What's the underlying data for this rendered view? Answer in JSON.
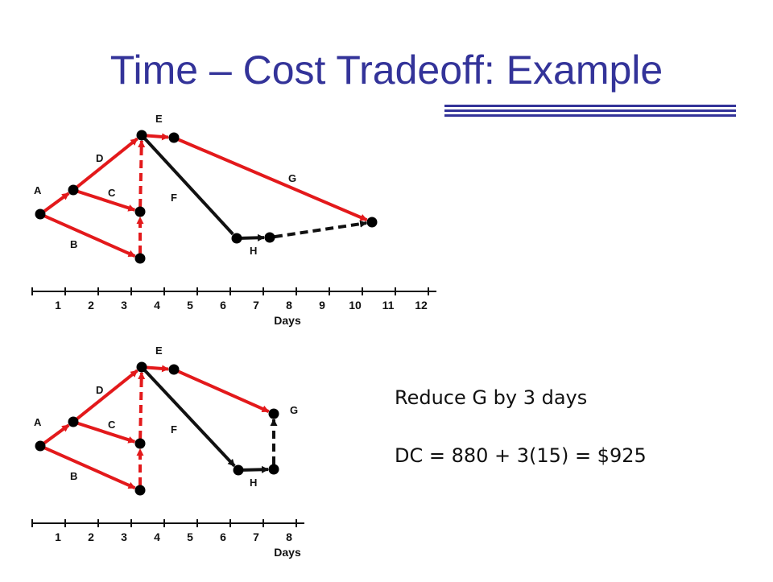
{
  "title": "Time – Cost Tradeoff: Example",
  "colors": {
    "title": "#333399",
    "critical": "#e3191b",
    "noncritical": "#111111",
    "node": "#000000"
  },
  "diagrams": [
    {
      "id": "top",
      "days": [
        1,
        2,
        3,
        4,
        5,
        6,
        7,
        8,
        9,
        10,
        11,
        12
      ],
      "axis_label": "Days",
      "activities": [
        {
          "label": "A",
          "critical": true
        },
        {
          "label": "B",
          "critical": true
        },
        {
          "label": "C",
          "critical": true
        },
        {
          "label": "D",
          "critical": true
        },
        {
          "label": "E",
          "critical": true
        },
        {
          "label": "F",
          "critical": false
        },
        {
          "label": "G",
          "critical": true
        },
        {
          "label": "H",
          "critical": false
        }
      ]
    },
    {
      "id": "bottom",
      "days": [
        1,
        2,
        3,
        4,
        5,
        6,
        7,
        8
      ],
      "axis_label": "Days",
      "activities": [
        {
          "label": "A",
          "critical": true
        },
        {
          "label": "B",
          "critical": true
        },
        {
          "label": "C",
          "critical": true
        },
        {
          "label": "D",
          "critical": true
        },
        {
          "label": "E",
          "critical": true
        },
        {
          "label": "F",
          "critical": false
        },
        {
          "label": "G",
          "critical": true
        },
        {
          "label": "H",
          "critical": false
        }
      ]
    }
  ],
  "notes": {
    "line1": "Reduce G by 3 days",
    "line2": "DC = 880 + 3(15) = $925"
  }
}
